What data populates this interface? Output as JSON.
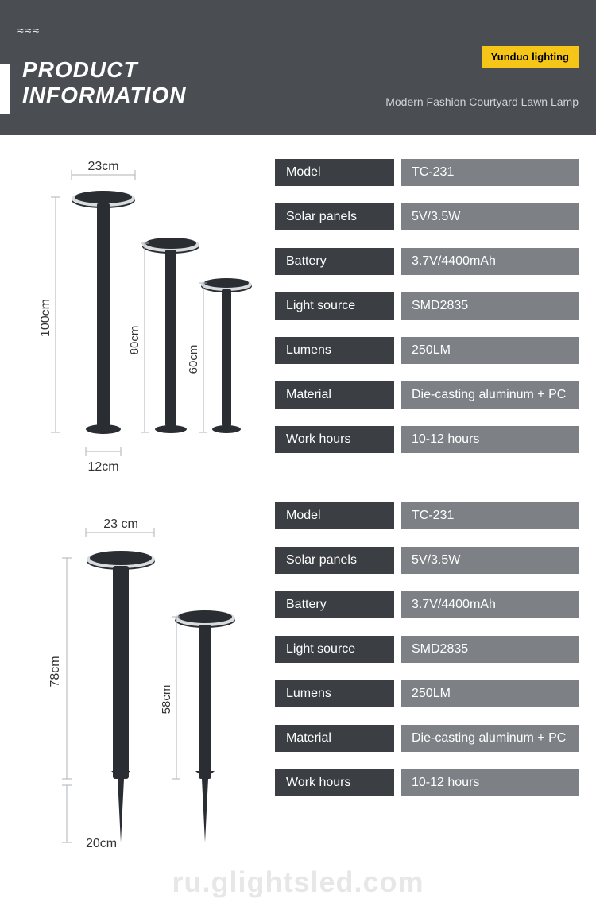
{
  "header": {
    "title_line1": "PRODUCT",
    "title_line2": "INFORMATION",
    "brand": "Yunduo lighting",
    "subtitle": "Modern Fashion Courtyard Lawn Lamp",
    "accent_color": "#f5c518",
    "bg_color": "#4a4e53"
  },
  "diagram1": {
    "top_width": "23cm",
    "base_width": "12cm",
    "heights": [
      "100cm",
      "80cm",
      "60cm"
    ],
    "lamp_color": "#2a2e33",
    "dim_line_color": "#aeb3b9"
  },
  "diagram2": {
    "top_width": "23 cm",
    "heights": [
      "78cm",
      "58cm"
    ],
    "spike_label": "20cm",
    "lamp_color": "#2a2e33",
    "dim_line_color": "#aeb3b9"
  },
  "specs1": [
    {
      "label": "Model",
      "value": "TC-231"
    },
    {
      "label": "Solar panels",
      "value": "5V/3.5W"
    },
    {
      "label": "Battery",
      "value": "3.7V/4400mAh"
    },
    {
      "label": "Light source",
      "value": "SMD2835"
    },
    {
      "label": "Lumens",
      "value": "250LM"
    },
    {
      "label": "Material",
      "value": "Die-casting aluminum + PC"
    },
    {
      "label": "Work hours",
      "value": "10-12 hours"
    }
  ],
  "specs2": [
    {
      "label": "Model",
      "value": "TC-231"
    },
    {
      "label": "Solar panels",
      "value": "5V/3.5W"
    },
    {
      "label": "Battery",
      "value": "3.7V/4400mAh"
    },
    {
      "label": "Light source",
      "value": "SMD2835"
    },
    {
      "label": "Lumens",
      "value": "250LM"
    },
    {
      "label": "Material",
      "value": "Die-casting aluminum + PC"
    },
    {
      "label": "Work hours",
      "value": "10-12 hours"
    }
  ],
  "spec_colors": {
    "label_bg": "#3b3f44",
    "value_bg": "#7d8186",
    "text": "#ffffff"
  },
  "watermark": "ru.glightsled.com"
}
